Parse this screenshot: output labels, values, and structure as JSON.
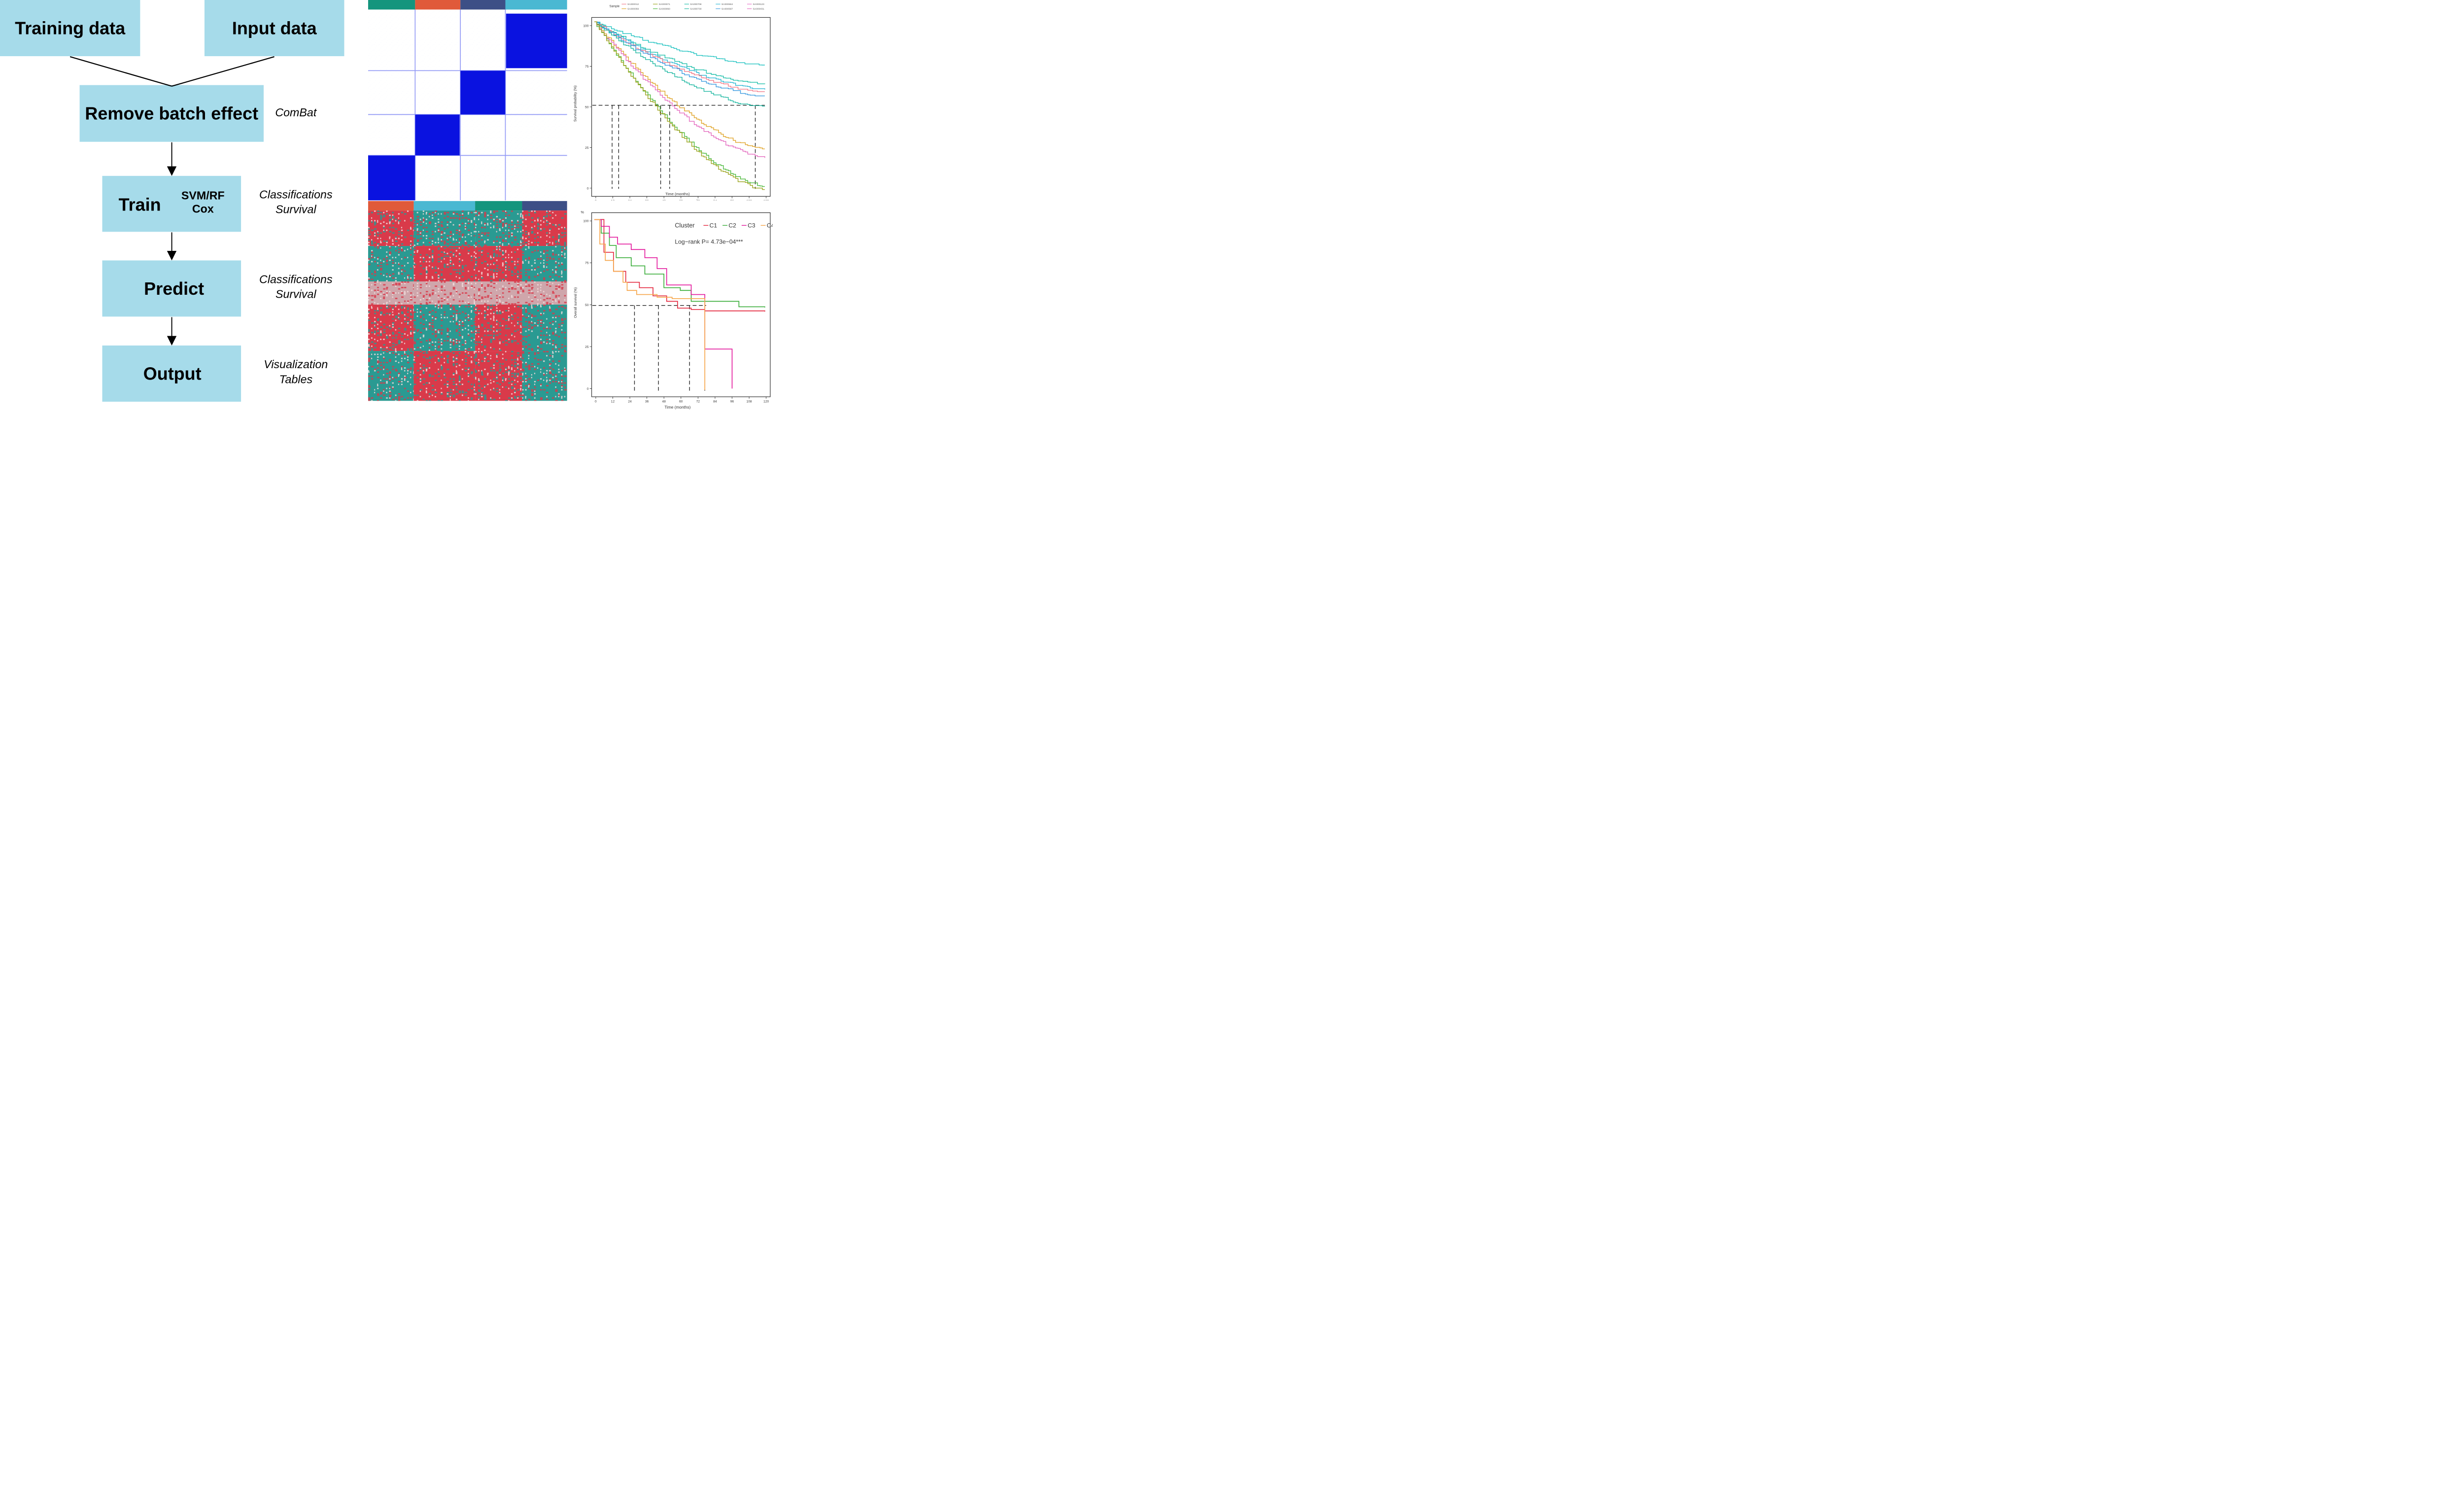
{
  "flowchart": {
    "training_data": "Training data",
    "input_data": "Input data",
    "remove_batch": "Remove batch effect",
    "train": "Train",
    "methods_line1": "SVM/RF",
    "methods_line2": "Cox",
    "predict": "Predict",
    "output": "Output",
    "note_combat": "ComBat",
    "note_train_1": "Classifications",
    "note_train_2": "Survival",
    "note_predict_1": "Classifications",
    "note_predict_2": "Survival",
    "note_output_1": "Visualization",
    "note_output_2": "Tables"
  },
  "colors": {
    "box_fill": "#a6dbea",
    "consensus_blue": "#0a12e0",
    "heat_red": "#d93a4a",
    "heat_teal": "#2a9a92",
    "bar_green": "#14957d",
    "bar_orange": "#e05a3a",
    "bar_navy": "#3d4f86",
    "bar_cyan": "#4ab8d2"
  },
  "survival_top": {
    "legend_title": "Sample",
    "legend_entries": [
      "SA000012",
      "SA000071",
      "SA000708",
      "SA000664",
      "SA000123",
      "SA000059",
      "SA000060",
      "SA000730",
      "SA000587",
      "SA000431"
    ],
    "ylabel": "Survival probability (%)",
    "xlabel": "Time (months)",
    "y_ticks": [
      "100",
      "75",
      "50",
      "25",
      "0"
    ],
    "x_ticks": [
      "0",
      "12",
      "24",
      "36",
      "48",
      "60",
      "72",
      "84",
      "96",
      "108",
      "120"
    ]
  },
  "survival_bottom": {
    "legend_title": "Cluster",
    "legend_entries": [
      "C1",
      "C2",
      "C3",
      "C4"
    ],
    "pvalue": "Log−rank P= 4.73e−04***",
    "ylabel": "Overall survival (%)",
    "xlabel": "Time (months)",
    "y_ticks": [
      "100",
      "75",
      "50",
      "25",
      "0"
    ],
    "x_ticks": [
      "0",
      "12",
      "24",
      "36",
      "48",
      "60",
      "72",
      "84",
      "96",
      "108",
      "120"
    ],
    "top_label": "%"
  }
}
